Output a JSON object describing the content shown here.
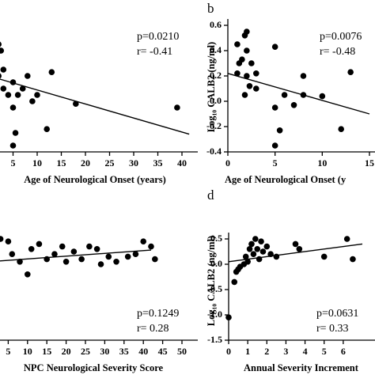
{
  "chart_data": [
    {
      "type": "scatter",
      "x_label": "Age of Neurological Onset (years)",
      "annotations": [
        "p=0.0210",
        "r= -0.41"
      ],
      "color": "#000000",
      "xlim": [
        0,
        40
      ],
      "xticks": [
        5,
        10,
        15,
        20,
        25,
        30,
        35,
        40
      ],
      "ylim": [
        -0.4,
        0.6
      ],
      "x": [
        0.5,
        1,
        1,
        1.5,
        2,
        2,
        2.5,
        3,
        3,
        4,
        5,
        5,
        5.5,
        6,
        7,
        8,
        9,
        10,
        12,
        13,
        18,
        39,
        5
      ],
      "values": [
        0.5,
        0.55,
        0.35,
        0.3,
        0.45,
        0.2,
        0.4,
        0.25,
        0.1,
        0.05,
        -0.05,
        0.15,
        -0.25,
        0.05,
        0.1,
        0.2,
        0.0,
        0.05,
        -0.22,
        0.23,
        -0.02,
        -0.05,
        -0.35
      ],
      "trend_line": {
        "x": [
          0,
          41.5
        ],
        "y": [
          0.2,
          -0.26
        ]
      }
    },
    {
      "type": "scatter",
      "label": "b",
      "x_label": "Age of Neurological Onset (y",
      "y_label": "Log₁₀ CALB2 (ng/ml)",
      "annotations": [
        "p=0.0076",
        "r= -0.48"
      ],
      "color": "#000000",
      "xlim": [
        0,
        15
      ],
      "xticks": [
        0,
        5,
        10,
        15
      ],
      "ylim": [
        -0.4,
        0.6
      ],
      "yticks": [
        0.6,
        0.4,
        0.2,
        {
          "value": 0,
          "label": "0.0"
        },
        -0.2,
        -0.4
      ],
      "x": [
        1,
        1.2,
        1.5,
        1.8,
        2,
        2,
        2,
        1,
        2.3,
        2.5,
        1.8,
        3,
        5,
        5,
        5.5,
        5,
        6,
        7,
        8,
        8,
        10,
        12,
        13,
        3
      ],
      "values": [
        0.45,
        0.3,
        0.33,
        0.52,
        0.55,
        0.4,
        0.2,
        0.22,
        0.12,
        0.3,
        0.05,
        0.22,
        0.43,
        -0.05,
        -0.23,
        -0.35,
        0.05,
        -0.03,
        0.2,
        0.05,
        0.04,
        -0.22,
        0.23,
        0.1
      ],
      "trend_line": {
        "x": [
          0,
          15
        ],
        "y": [
          0.22,
          -0.1
        ]
      }
    },
    {
      "type": "scatter",
      "x_label": "NPC Neurological Severity Score",
      "annotations": [
        "p=0.1249",
        "r= 0.28"
      ],
      "color": "#000000",
      "xlim": [
        0,
        50
      ],
      "xticks": [
        5,
        10,
        15,
        20,
        25,
        30,
        35,
        40,
        45,
        50
      ],
      "ylim": [
        -1.5,
        0.5
      ],
      "x": [
        1,
        3,
        5,
        6,
        8,
        10,
        11,
        13,
        15,
        17,
        19,
        20,
        22,
        24,
        26,
        28,
        29,
        31,
        33,
        36,
        38,
        40,
        42,
        43
      ],
      "values": [
        0.3,
        0.5,
        0.45,
        0.2,
        0.05,
        -0.2,
        0.3,
        0.4,
        0.1,
        0.2,
        0.35,
        0.05,
        0.25,
        0.1,
        0.35,
        0.3,
        0.0,
        0.15,
        0.05,
        0.15,
        0.2,
        0.45,
        0.35,
        0.1
      ],
      "trend_line": {
        "x": [
          0,
          42
        ],
        "y": [
          0.05,
          0.28
        ]
      }
    },
    {
      "type": "scatter",
      "label": "d",
      "x_label": "Annual Severity Increment",
      "y_label": "Log₁₀ CALB2 (ng/ml)",
      "annotations": [
        "p=0.0631",
        "r= 0.33"
      ],
      "color": "#000000",
      "xlim": [
        0,
        7
      ],
      "xticks": [
        0,
        1,
        2,
        3,
        4,
        5,
        6
      ],
      "ylim": [
        -1.5,
        0.5
      ],
      "yticks": [
        0.5,
        {
          "value": 0,
          "label": "0.0"
        },
        -0.5,
        {
          "value": -1,
          "label": "-1.0"
        },
        -1.5
      ],
      "x": [
        0,
        0.3,
        0.4,
        0.5,
        0.6,
        0.8,
        0.9,
        1,
        1.1,
        1.2,
        1.3,
        1.4,
        1.5,
        1.6,
        1.7,
        1.8,
        2,
        2.2,
        2.5,
        3.5,
        3.7,
        5,
        6.2,
        6.5
      ],
      "values": [
        -1.05,
        -0.35,
        -0.15,
        -0.1,
        -0.05,
        0,
        0.15,
        0.05,
        0.3,
        0.4,
        0.2,
        0.5,
        0.3,
        0.1,
        0.45,
        0.25,
        0.35,
        0.2,
        0.15,
        0.4,
        0.3,
        0.15,
        0.5,
        0.1
      ],
      "trend_line": {
        "x": [
          0,
          7
        ],
        "y": [
          0.05,
          0.4
        ]
      }
    }
  ]
}
